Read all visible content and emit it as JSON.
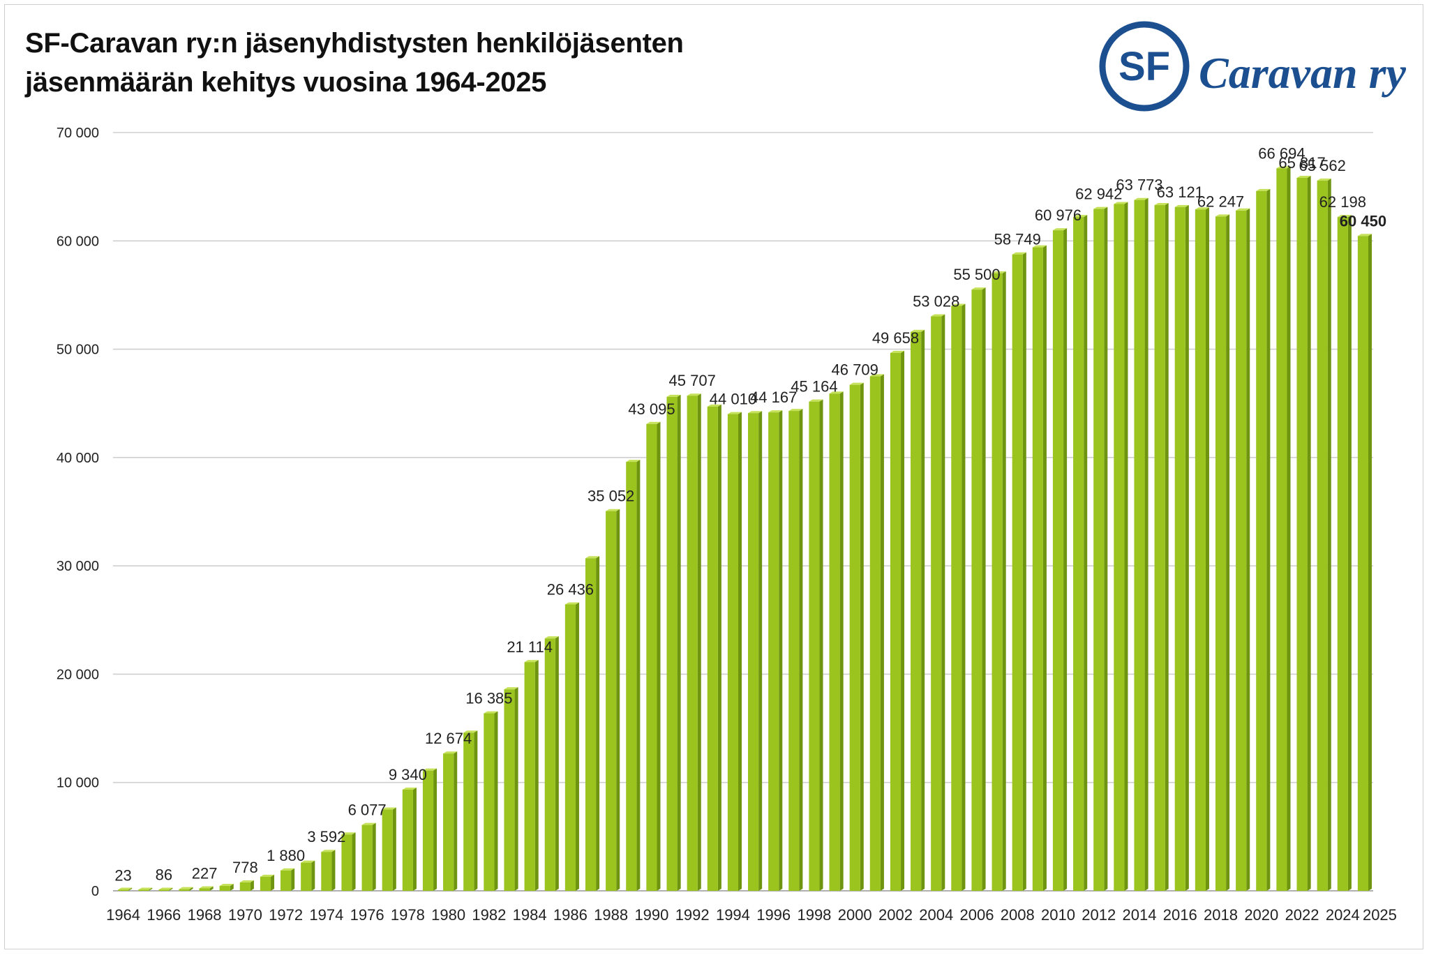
{
  "title_lines": [
    "SF-Caravan ry:n jäsenyhdistysten henkilöjäsenten",
    "jäsenmäärän kehitys vuosina 1964-2025"
  ],
  "logo": {
    "badge_text": "SF",
    "wordmark": "Caravan ry",
    "color": "#1b4f8f"
  },
  "colors": {
    "bar_front": "#9cc41f",
    "bar_side": "#6f9410",
    "bar_top": "#c6e25a",
    "grid": "#cfcfcf",
    "axis": "#b0b0b0"
  },
  "chart_data": {
    "type": "bar",
    "title": "SF-Caravan ry:n jäsenyhdistysten henkilöjäsenten jäsenmäärän kehitys vuosina 1964-2025",
    "xlabel": "",
    "ylabel": "",
    "ylim": [
      0,
      70000
    ],
    "yticks": [
      0,
      10000,
      20000,
      30000,
      40000,
      50000,
      60000,
      70000
    ],
    "ytick_labels": [
      "0",
      "10 000",
      "20 000",
      "30 000",
      "40 000",
      "50 000",
      "60 000",
      "70 000"
    ],
    "grid": true,
    "legend": "none",
    "x_tick_labels": [
      "1964",
      "1966",
      "1968",
      "1970",
      "1972",
      "1974",
      "1976",
      "1978",
      "1980",
      "1982",
      "1984",
      "1986",
      "1988",
      "1990",
      "1992",
      "1994",
      "1996",
      "1998",
      "2000",
      "2002",
      "2004",
      "2006",
      "2008",
      "2010",
      "2012",
      "2014",
      "2016",
      "2018",
      "2020",
      "2022",
      "2024",
      "2025"
    ],
    "categories": [
      "1964",
      "1965",
      "1966",
      "1967",
      "1968",
      "1969",
      "1970",
      "1971",
      "1972",
      "1973",
      "1974",
      "1975",
      "1976",
      "1977",
      "1978",
      "1979",
      "1980",
      "1981",
      "1982",
      "1983",
      "1984",
      "1985",
      "1986",
      "1987",
      "1988",
      "1989",
      "1990",
      "1991",
      "1992",
      "1993",
      "1994",
      "1995",
      "1996",
      "1997",
      "1998",
      "1999",
      "2000",
      "2001",
      "2002",
      "2003",
      "2004",
      "2005",
      "2006",
      "2007",
      "2008",
      "2009",
      "2010",
      "2011",
      "2012",
      "2013",
      "2014",
      "2015",
      "2016",
      "2017",
      "2018",
      "2019",
      "2020",
      "2021",
      "2022",
      "2023",
      "2024",
      "2025"
    ],
    "values": [
      23,
      50,
      86,
      150,
      227,
      450,
      778,
      1300,
      1880,
      2600,
      3592,
      5200,
      6077,
      7500,
      9340,
      11100,
      12674,
      14600,
      16385,
      18600,
      21114,
      23300,
      26436,
      30700,
      35052,
      39600,
      43095,
      45600,
      45707,
      44700,
      44010,
      44100,
      44167,
      44300,
      45164,
      45900,
      46709,
      47500,
      49658,
      51600,
      53028,
      54000,
      55500,
      57000,
      58749,
      59400,
      60976,
      62200,
      62942,
      63400,
      63773,
      63300,
      63121,
      62900,
      62247,
      62800,
      64600,
      66694,
      65817,
      65562,
      62198,
      60450
    ],
    "data_labels": [
      {
        "index": 0,
        "text": "23"
      },
      {
        "index": 2,
        "text": "86"
      },
      {
        "index": 4,
        "text": "227"
      },
      {
        "index": 6,
        "text": "778"
      },
      {
        "index": 8,
        "text": "1 880"
      },
      {
        "index": 10,
        "text": "3 592"
      },
      {
        "index": 12,
        "text": "6 077"
      },
      {
        "index": 14,
        "text": "9 340"
      },
      {
        "index": 16,
        "text": "12 674"
      },
      {
        "index": 18,
        "text": "16 385"
      },
      {
        "index": 20,
        "text": "21 114"
      },
      {
        "index": 22,
        "text": "26 436"
      },
      {
        "index": 24,
        "text": "35 052"
      },
      {
        "index": 26,
        "text": "43 095"
      },
      {
        "index": 28,
        "text": "45 707"
      },
      {
        "index": 30,
        "text": "44 010"
      },
      {
        "index": 32,
        "text": "44 167"
      },
      {
        "index": 34,
        "text": "45 164"
      },
      {
        "index": 36,
        "text": "46 709"
      },
      {
        "index": 38,
        "text": "49 658"
      },
      {
        "index": 40,
        "text": "53 028"
      },
      {
        "index": 42,
        "text": "55 500"
      },
      {
        "index": 44,
        "text": "58 749"
      },
      {
        "index": 46,
        "text": "60 976"
      },
      {
        "index": 48,
        "text": "62 942"
      },
      {
        "index": 50,
        "text": "63 773"
      },
      {
        "index": 52,
        "text": "63 121"
      },
      {
        "index": 54,
        "text": "62 247"
      },
      {
        "index": 57,
        "text": "66 694"
      },
      {
        "index": 58,
        "text": "65 817"
      },
      {
        "index": 59,
        "text": "65 562"
      },
      {
        "index": 60,
        "text": "62 198"
      },
      {
        "index": 61,
        "text": "60 450",
        "bold": true
      }
    ]
  }
}
